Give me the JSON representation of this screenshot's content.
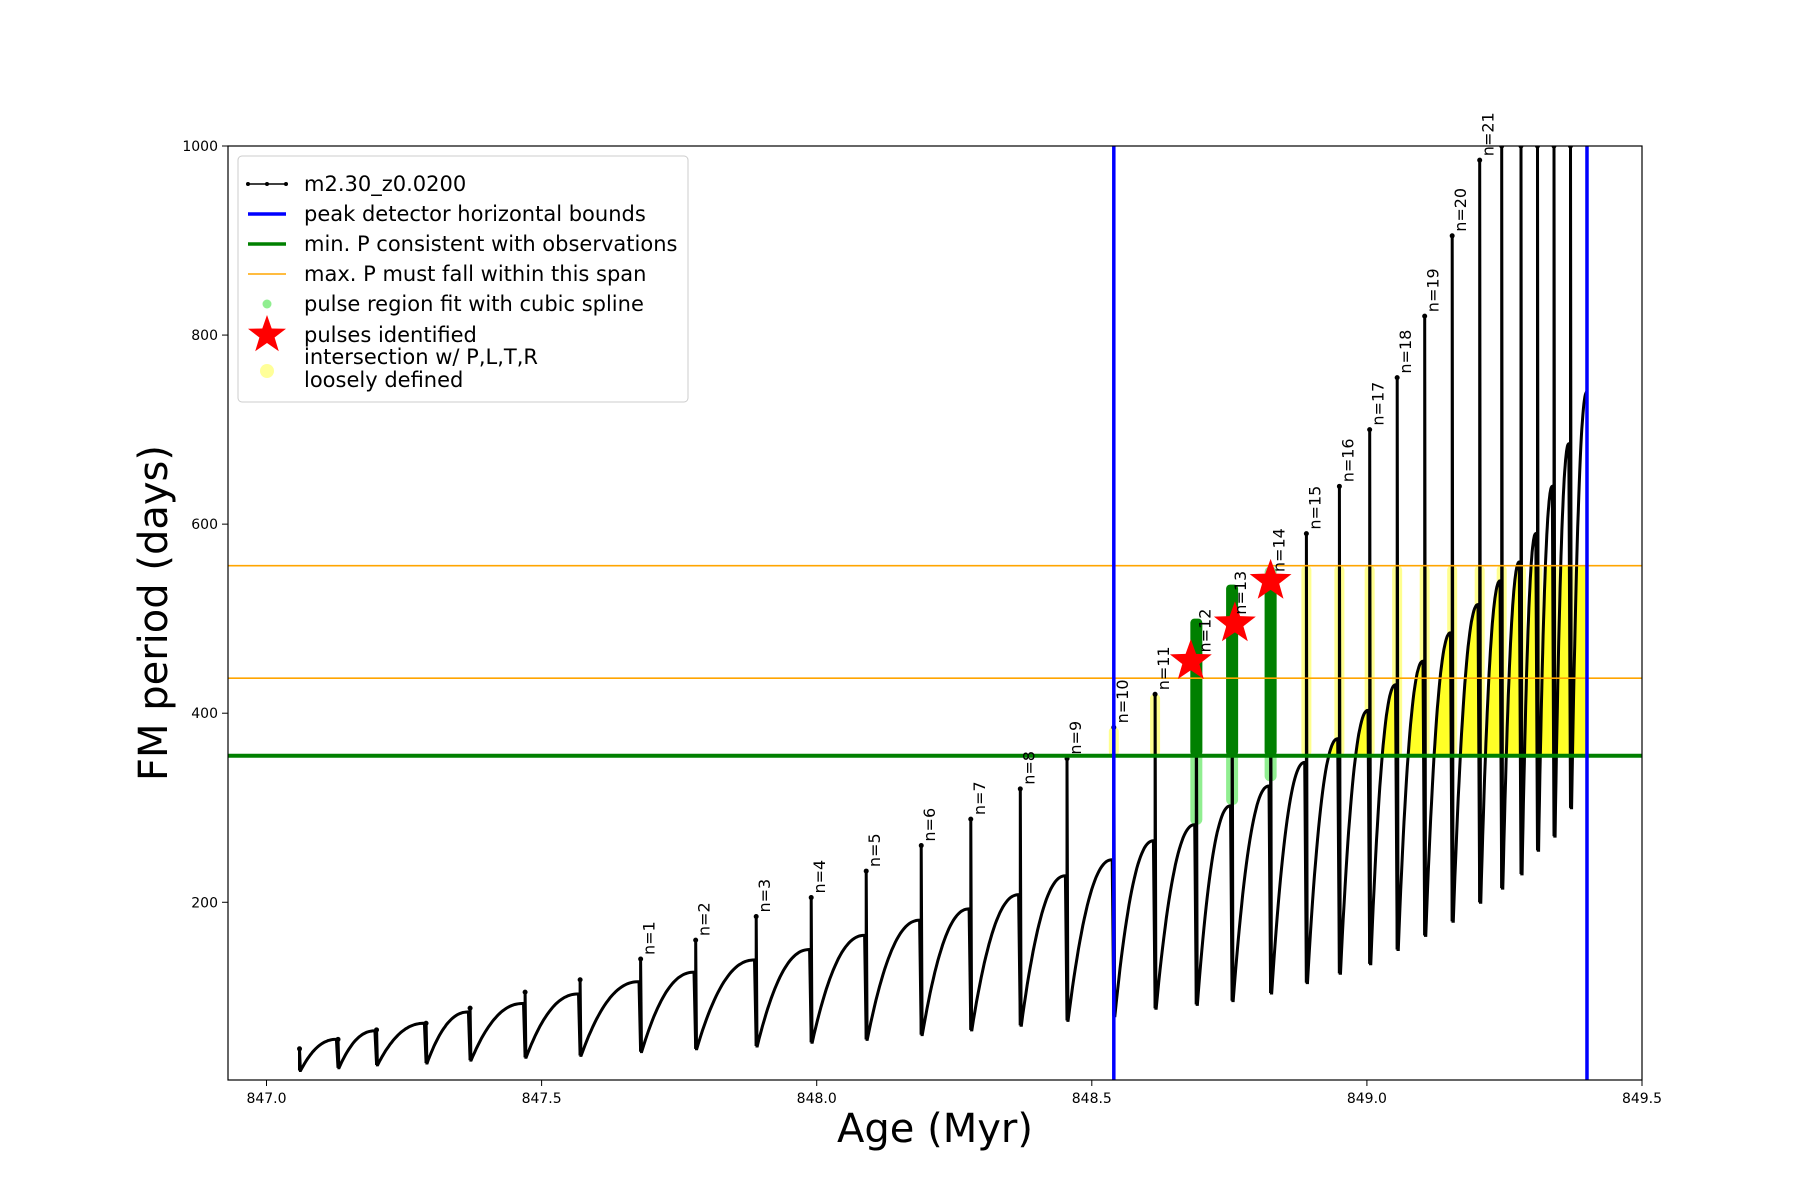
{
  "chart_data": {
    "type": "line",
    "xlabel": "Age (Myr)",
    "ylabel": "FM period (days)",
    "xlim": [
      846.93,
      849.5
    ],
    "ylim": [
      12,
      1000
    ],
    "xticks": [
      847.0,
      847.5,
      848.0,
      848.5,
      849.0,
      849.5
    ],
    "xtick_labels": [
      "847.0",
      "847.5",
      "848.0",
      "848.5",
      "849.0",
      "849.5"
    ],
    "yticks": [
      200,
      400,
      600,
      800,
      1000
    ],
    "ytick_labels": [
      "200",
      "400",
      "600",
      "800",
      "1000"
    ],
    "grid": false,
    "legend": {
      "placement": "top-left",
      "entries": [
        {
          "label": "m2.30_z0.0200",
          "kind": "line-marker",
          "color": "#000000"
        },
        {
          "label": "peak detector horizontal bounds",
          "kind": "line",
          "color": "#0000ff"
        },
        {
          "label": "min. P consistent with observations",
          "kind": "line",
          "color": "#008000"
        },
        {
          "label": "max. P must fall within this span",
          "kind": "line",
          "color": "#ffa500"
        },
        {
          "label": "pulse region fit with cubic spline",
          "kind": "dot",
          "color": "#90ee90"
        },
        {
          "label": "pulses identified",
          "kind": "star",
          "color": "#ff0000"
        },
        {
          "label": "intersection w/ P,L,T,R",
          "label2": "loosely defined",
          "kind": "dot",
          "color": "#ffff99"
        }
      ]
    },
    "vertical_lines": [
      848.54,
      849.4
    ],
    "min_p_line": 355,
    "max_p_span": [
      437,
      556
    ],
    "pulses": [
      {
        "name": "",
        "x": 847.06,
        "peak": 45,
        "min": 22,
        "end": 55
      },
      {
        "name": "",
        "x": 847.13,
        "peak": 55,
        "min": 25,
        "end": 64
      },
      {
        "name": "",
        "x": 847.2,
        "peak": 65,
        "min": 28,
        "end": 72
      },
      {
        "name": "",
        "x": 847.29,
        "peak": 72,
        "min": 30,
        "end": 84
      },
      {
        "name": "",
        "x": 847.37,
        "peak": 88,
        "min": 33,
        "end": 93
      },
      {
        "name": "",
        "x": 847.47,
        "peak": 105,
        "min": 36,
        "end": 103
      },
      {
        "name": "",
        "x": 847.57,
        "peak": 118,
        "min": 38,
        "end": 116
      },
      {
        "name": "n=1",
        "x": 847.68,
        "peak": 140,
        "min": 42,
        "end": 126
      },
      {
        "name": "n=2",
        "x": 847.78,
        "peak": 160,
        "min": 45,
        "end": 139
      },
      {
        "name": "n=3",
        "x": 847.89,
        "peak": 185,
        "min": 48,
        "end": 150
      },
      {
        "name": "n=4",
        "x": 847.99,
        "peak": 205,
        "min": 52,
        "end": 165
      },
      {
        "name": "n=5",
        "x": 848.09,
        "peak": 233,
        "min": 55,
        "end": 181
      },
      {
        "name": "n=6",
        "x": 848.19,
        "peak": 260,
        "min": 60,
        "end": 193
      },
      {
        "name": "n=7",
        "x": 848.28,
        "peak": 288,
        "min": 65,
        "end": 208
      },
      {
        "name": "n=8",
        "x": 848.37,
        "peak": 320,
        "min": 70,
        "end": 228
      },
      {
        "name": "n=9",
        "x": 848.455,
        "peak": 352,
        "min": 75,
        "end": 245
      },
      {
        "name": "n=10",
        "x": 848.54,
        "peak": 385,
        "min": 80,
        "end": 265
      },
      {
        "name": "n=11",
        "x": 848.615,
        "peak": 420,
        "min": 88,
        "end": 282
      },
      {
        "name": "n=12",
        "x": 848.69,
        "peak": 460,
        "min": 92,
        "end": 302
      },
      {
        "name": "n=13",
        "x": 848.755,
        "peak": 500,
        "min": 96,
        "end": 323
      },
      {
        "name": "n=14",
        "x": 848.825,
        "peak": 545,
        "min": 104,
        "end": 348
      },
      {
        "name": "n=15",
        "x": 848.89,
        "peak": 590,
        "min": 115,
        "end": 373
      },
      {
        "name": "n=16",
        "x": 848.95,
        "peak": 640,
        "min": 125,
        "end": 403
      },
      {
        "name": "n=17",
        "x": 849.005,
        "peak": 700,
        "min": 135,
        "end": 430
      },
      {
        "name": "n=18",
        "x": 849.055,
        "peak": 755,
        "min": 150,
        "end": 455
      },
      {
        "name": "n=19",
        "x": 849.105,
        "peak": 820,
        "min": 165,
        "end": 485
      },
      {
        "name": "n=20",
        "x": 849.155,
        "peak": 905,
        "min": 180,
        "end": 515
      },
      {
        "name": "n=21",
        "x": 849.205,
        "peak": 985,
        "min": 200,
        "end": 540
      },
      {
        "name": "",
        "x": 849.245,
        "peak": 1000,
        "min": 215,
        "end": 560
      },
      {
        "name": "",
        "x": 849.28,
        "peak": 1000,
        "min": 230,
        "end": 590
      },
      {
        "name": "",
        "x": 849.31,
        "peak": 1000,
        "min": 255,
        "end": 640
      },
      {
        "name": "",
        "x": 849.34,
        "peak": 1000,
        "min": 270,
        "end": 685
      },
      {
        "name": "",
        "x": 849.37,
        "peak": 1000,
        "min": 300,
        "end": 740
      }
    ],
    "green_pulse_columns": [
      848.69,
      848.755,
      848.825
    ],
    "pulses_identified": [
      {
        "x": 848.68,
        "y": 455
      },
      {
        "x": 848.76,
        "y": 495
      },
      {
        "x": 848.825,
        "y": 540
      }
    ]
  }
}
